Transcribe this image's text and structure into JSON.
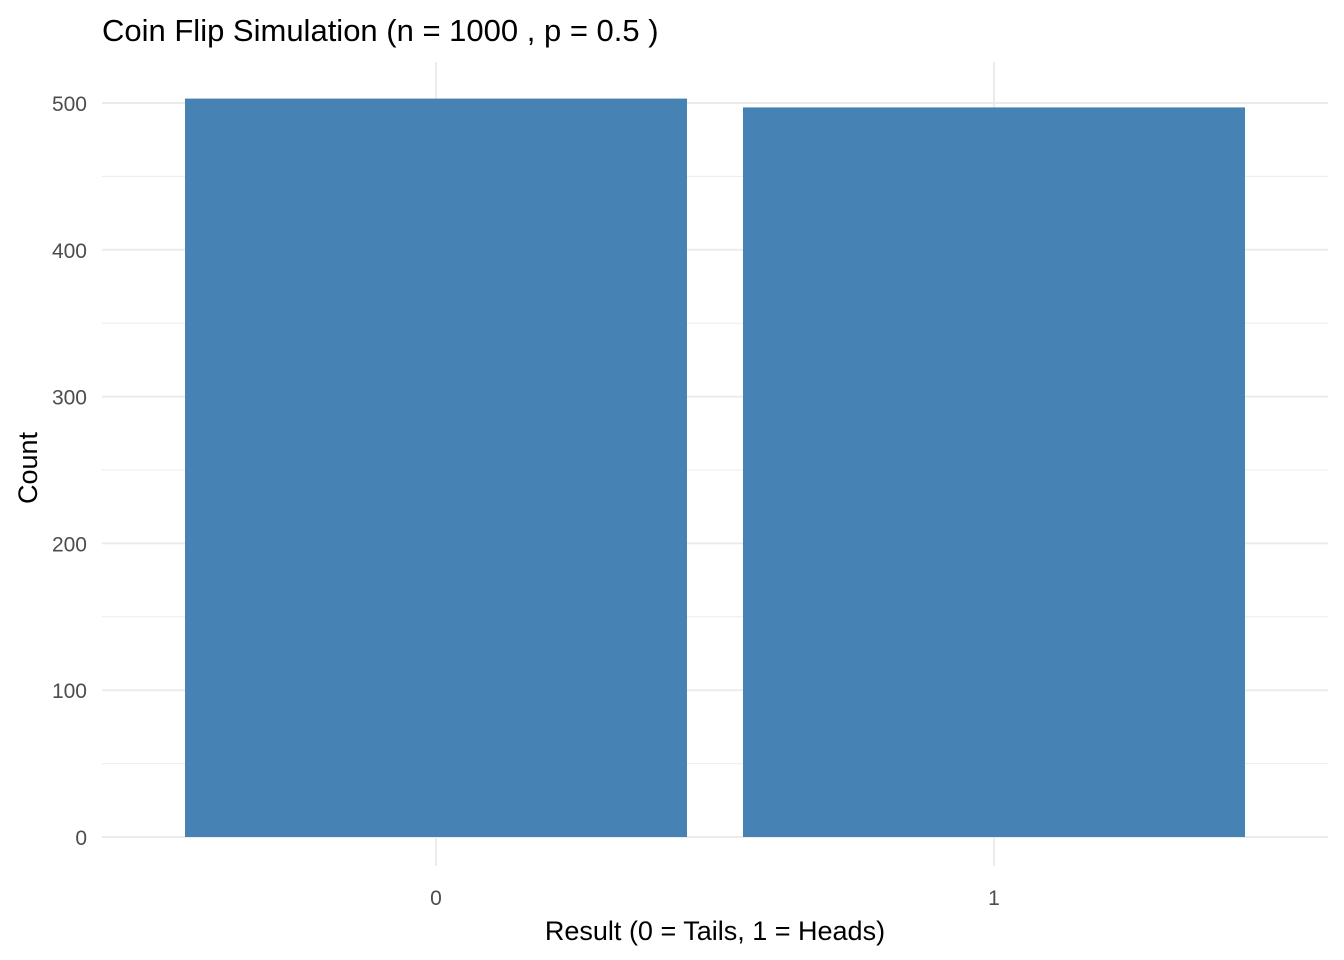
{
  "chart_data": {
    "type": "bar",
    "title": "Coin Flip Simulation (n = 1000 , p = 0.5 )",
    "xlabel": "Result (0 = Tails, 1 = Heads)",
    "ylabel": "Count",
    "categories": [
      "0",
      "1"
    ],
    "values": [
      503,
      497
    ],
    "ylim": [
      0,
      500
    ],
    "y_ticks": [
      0,
      100,
      200,
      300,
      400,
      500
    ],
    "grid": true,
    "bar_color": "#4682b4",
    "grid_color": "#ebebeb"
  }
}
